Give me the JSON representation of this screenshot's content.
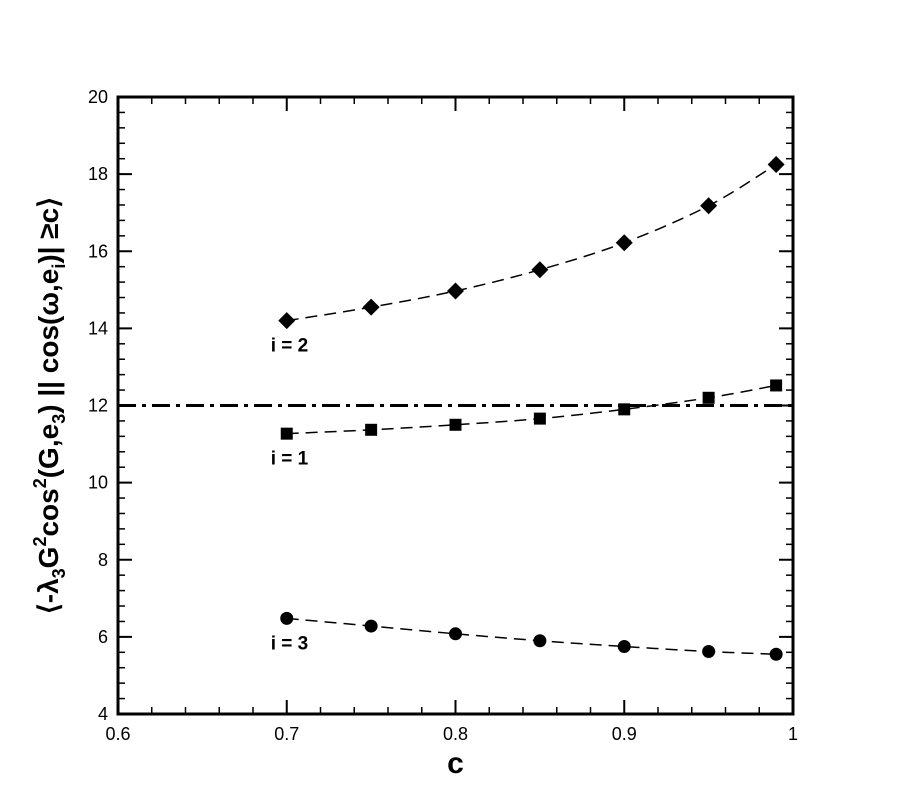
{
  "chart_data": {
    "type": "scatter",
    "xlabel": "c",
    "ylabel_parts": [
      "⟨-λ",
      "3",
      "G",
      "2",
      "cos",
      "2",
      "(G,e",
      "3",
      ") || cos(ω,e",
      "i",
      ")| ≥c⟩"
    ],
    "xlim": [
      0.6,
      1.0
    ],
    "ylim": [
      4,
      20
    ],
    "x_ticks": [
      "0.6",
      "0.7",
      "0.8",
      "0.9",
      "1"
    ],
    "y_ticks": [
      "4",
      "6",
      "8",
      "10",
      "12",
      "14",
      "16",
      "18",
      "20"
    ],
    "grid": false,
    "reference_line": {
      "y": 12,
      "style": "dash-dot"
    },
    "series": [
      {
        "name": "i = 2",
        "marker": "diamond",
        "x": [
          0.7,
          0.75,
          0.8,
          0.85,
          0.9,
          0.95,
          0.99
        ],
        "y": [
          14.2,
          14.55,
          14.97,
          15.52,
          16.22,
          17.18,
          18.25
        ]
      },
      {
        "name": "i = 1",
        "marker": "square",
        "x": [
          0.7,
          0.75,
          0.8,
          0.85,
          0.9,
          0.95,
          0.99
        ],
        "y": [
          11.27,
          11.37,
          11.5,
          11.66,
          11.9,
          12.2,
          12.52
        ]
      },
      {
        "name": "i = 3",
        "marker": "circle",
        "x": [
          0.7,
          0.75,
          0.8,
          0.85,
          0.9,
          0.95,
          0.99
        ],
        "y": [
          6.48,
          6.28,
          6.08,
          5.9,
          5.75,
          5.62,
          5.55
        ]
      }
    ]
  }
}
